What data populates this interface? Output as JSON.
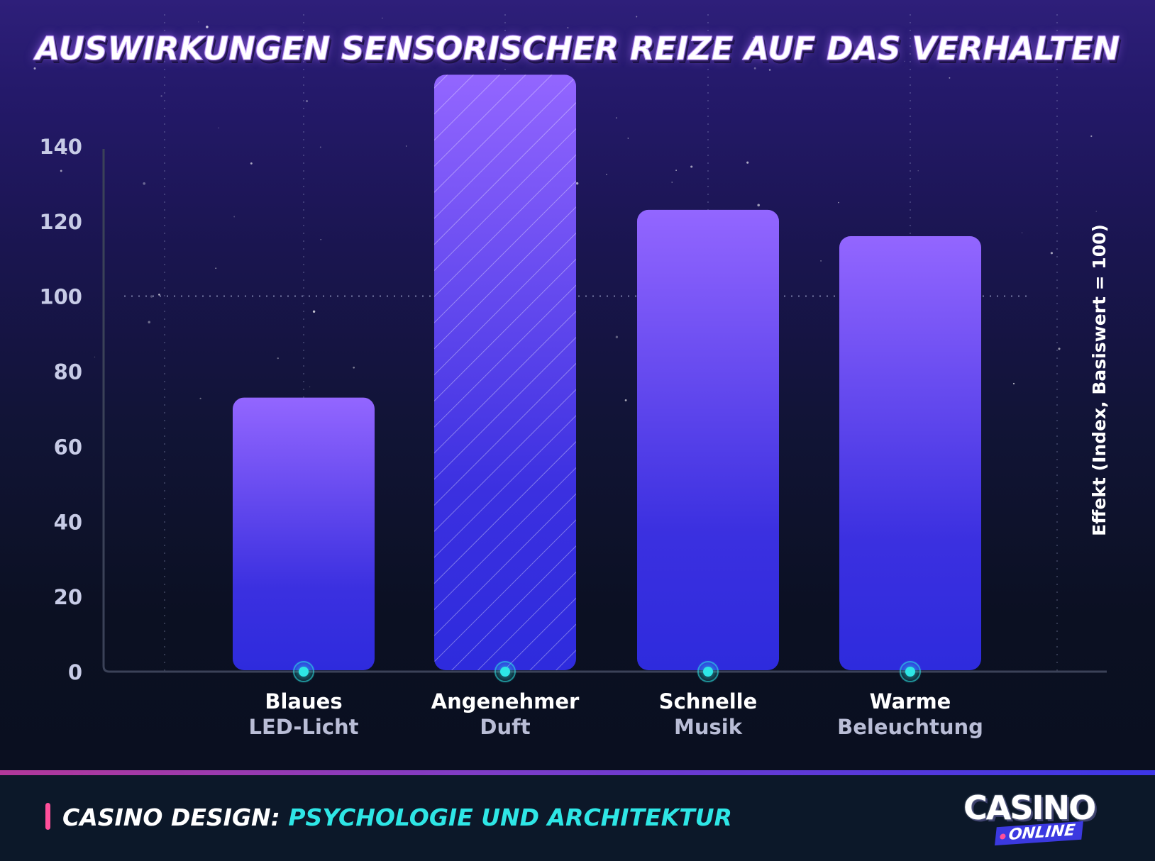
{
  "title": "AUSWIRKUNGEN SENSORISCHER REIZE AUF DAS VERHALTEN",
  "chart_data": {
    "type": "bar",
    "categories": [
      {
        "line1": "Blaues",
        "line2": "LED-Licht"
      },
      {
        "line1": "Angenehmer",
        "line2": "Duft"
      },
      {
        "line1": "Schnelle",
        "line2": "Musik"
      },
      {
        "line1": "Warme",
        "line2": "Beleuchtung"
      }
    ],
    "values": [
      73,
      159,
      123,
      116
    ],
    "highlighted_index": 1,
    "ylabel": "Effekt (Index, Basiswert = 100)",
    "ylim": [
      0,
      150
    ],
    "yticks": [
      0,
      20,
      40,
      60,
      80,
      100,
      120,
      140
    ],
    "reference_line": 100,
    "colors": {
      "bar_top": "#9366ff",
      "bar_bottom": "#2e2bdd",
      "tick_label": "#c7cbe6",
      "category_line1": "#ffffff",
      "category_line2": "#b9bdd6",
      "marker": "#2ee6e6"
    }
  },
  "footer": {
    "label_a": "CASINO DESIGN:",
    "label_b": "PSYCHOLOGIE UND ARCHITEKTUR"
  },
  "logo": {
    "main": "CASINO",
    "sub": "ONLINE"
  }
}
